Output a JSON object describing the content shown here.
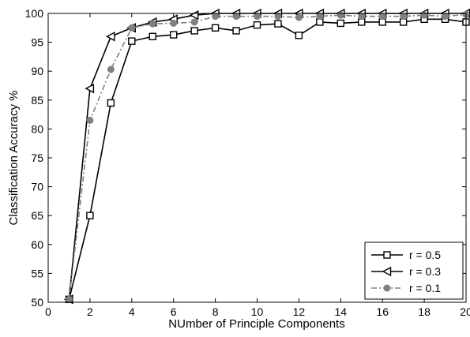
{
  "chart_data": {
    "type": "line",
    "title": "",
    "xlabel": "NUmber of Principle Components",
    "ylabel": "Classification Accuracy %",
    "xlim": [
      0,
      20
    ],
    "ylim": [
      50,
      100
    ],
    "x_ticks": [
      0,
      2,
      4,
      6,
      8,
      10,
      12,
      14,
      16,
      18,
      20
    ],
    "y_ticks": [
      50,
      55,
      60,
      65,
      70,
      75,
      80,
      85,
      90,
      95,
      100
    ],
    "grid": false,
    "legend_position": "bottom-right",
    "x": [
      1,
      2,
      3,
      4,
      5,
      6,
      7,
      8,
      9,
      10,
      11,
      12,
      13,
      14,
      15,
      16,
      17,
      18,
      19,
      20
    ],
    "series": [
      {
        "name": "r = 0.5",
        "marker": "square-open",
        "line_style": "solid",
        "color": "#000000",
        "values": [
          50.5,
          65.0,
          84.5,
          95.2,
          96.0,
          96.3,
          97.0,
          97.5,
          97.0,
          98.0,
          98.2,
          96.2,
          98.5,
          98.3,
          98.5,
          98.5,
          98.5,
          99.0,
          99.0,
          98.5
        ]
      },
      {
        "name": "r = 0.3",
        "marker": "triangle-left-open",
        "line_style": "solid",
        "color": "#000000",
        "values": [
          50.5,
          87.0,
          96.0,
          97.5,
          98.5,
          99.0,
          99.7,
          100.0,
          100.0,
          100.0,
          100.0,
          100.0,
          100.0,
          100.0,
          100.0,
          100.0,
          100.0,
          100.0,
          100.0,
          100.0
        ]
      },
      {
        "name": "r = 0.1",
        "marker": "circle-filled",
        "line_style": "dash-dot",
        "color": "#808080",
        "values": [
          50.5,
          81.5,
          90.3,
          97.5,
          98.2,
          98.3,
          98.5,
          99.5,
          99.5,
          99.5,
          99.5,
          99.3,
          99.5,
          99.7,
          99.5,
          99.5,
          99.5,
          99.7,
          99.5,
          99.8
        ]
      }
    ]
  }
}
